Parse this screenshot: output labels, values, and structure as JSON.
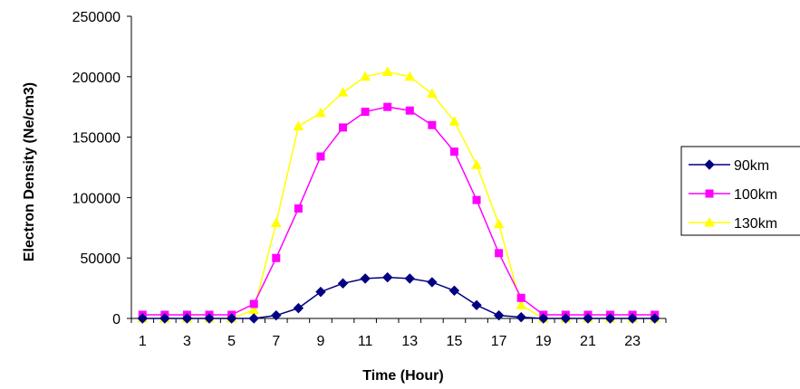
{
  "chart_data": {
    "type": "line",
    "xlabel": "Time (Hour)",
    "ylabel": "Electron Density (Ne/cm3)",
    "x": [
      1,
      2,
      3,
      4,
      5,
      6,
      7,
      8,
      9,
      10,
      11,
      12,
      13,
      14,
      15,
      16,
      17,
      18,
      19,
      20,
      21,
      22,
      23,
      24
    ],
    "x_tick_labels": [
      "1",
      "3",
      "5",
      "7",
      "9",
      "11",
      "13",
      "15",
      "17",
      "19",
      "21",
      "23"
    ],
    "ylim": [
      0,
      250000
    ],
    "y_tick_labels": [
      "0",
      "50000",
      "100000",
      "150000",
      "200000",
      "250000"
    ],
    "grid": false,
    "legend_position": "right",
    "series": [
      {
        "name": "90km",
        "color": "#000080",
        "marker": "diamond",
        "values": [
          0,
          0,
          0,
          0,
          0,
          0,
          2500,
          8500,
          22000,
          29000,
          33000,
          34000,
          33000,
          30000,
          23000,
          11000,
          2500,
          1000,
          0,
          0,
          0,
          0,
          0,
          0
        ]
      },
      {
        "name": "100km",
        "color": "#ff00ff",
        "marker": "square",
        "values": [
          3000,
          3000,
          3000,
          3000,
          3000,
          12000,
          50000,
          91000,
          134000,
          158000,
          171000,
          175000,
          172000,
          160000,
          138000,
          98000,
          54000,
          17000,
          3000,
          3000,
          3000,
          3000,
          3000,
          3000
        ]
      },
      {
        "name": "130km",
        "color": "#ffff00",
        "marker": "triangle",
        "values": [
          0,
          0,
          0,
          0,
          0,
          7000,
          79000,
          159000,
          170000,
          187000,
          200000,
          204000,
          200000,
          186000,
          163000,
          127000,
          78000,
          11000,
          0,
          0,
          0,
          0,
          0,
          0
        ]
      }
    ]
  }
}
